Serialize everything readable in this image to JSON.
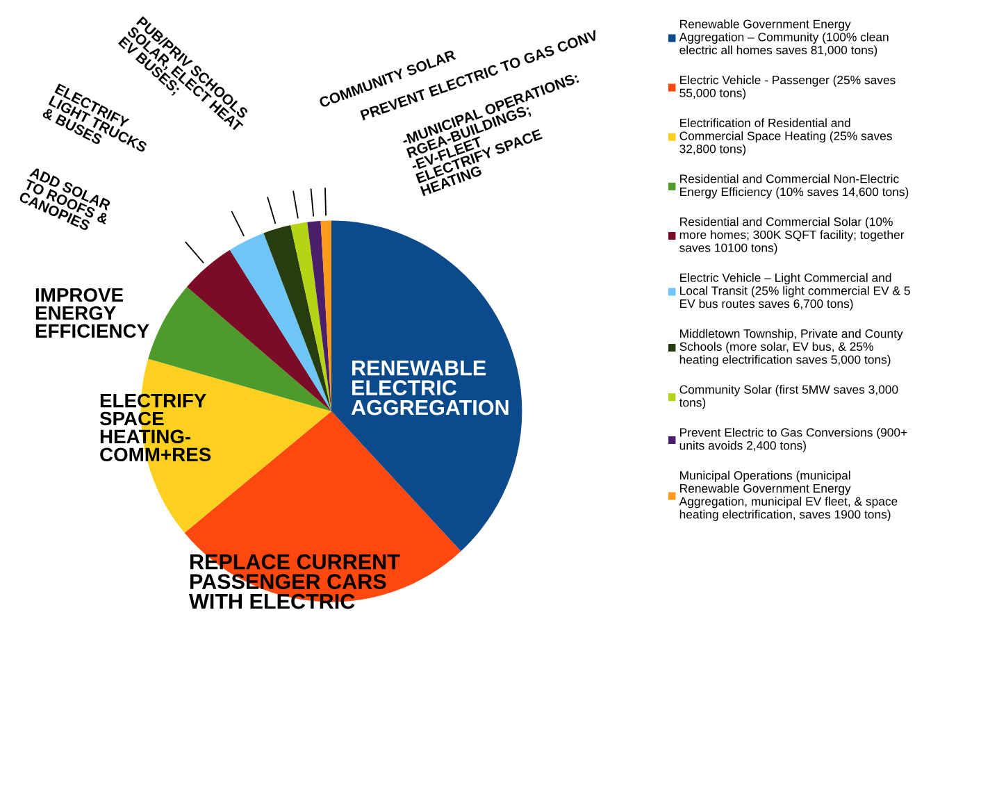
{
  "chart_data": {
    "type": "pie",
    "categories": [
      "Renewable Government Energy\nAggregation – Community (100% clean\nelectric all homes saves 81,000 tons)",
      "Electric Vehicle - Passenger (25% saves\n55,000 tons)",
      "Electrification of Residential and\nCommercial Space Heating (25% saves\n32,800 tons)",
      "Residential and Commercial Non-Electric\nEnergy Efficiency (10% saves 14,600 tons)",
      "Residential and Commercial Solar (10%\nmore homes; 300K SQFT facility; together\nsaves 10100 tons)",
      "Electric Vehicle – Light Commercial and\nLocal Transit (25% light commercial EV & 5\nEV bus routes saves 6,700 tons)",
      "Middletown Township, Private and County\nSchools (more solar, EV bus, & 25%\nheating electrification saves 5,000 tons)",
      "Community Solar (first 5MW saves 3,000\ntons)",
      "Prevent Electric to Gas Conversions (900+\nunits avoids 2,400 tons)",
      "Municipal Operations (municipal\nRenewable Government Energy\nAggregation, municipal EV fleet, & space\nheating electrification, saves 1900 tons)"
    ],
    "values": [
      81000,
      55000,
      32800,
      14600,
      10100,
      6700,
      5000,
      3000,
      2400,
      1900
    ],
    "colors": [
      "#0b4a8b",
      "#ff4810",
      "#fdd020",
      "#4e9a2a",
      "#7b0c27",
      "#6ec6f7",
      "#263d10",
      "#b5d414",
      "#4b1e6b",
      "#ff9a1a"
    ],
    "annotations": [
      "RENEWABLE\nELECTRIC\nAGGREGATION",
      "REPLACE CURRENT\nPASSENGER CARS\nWITH ELECTRIC",
      "ELECTRIFY\nSPACE\nHEATING-\nCOMM+RES",
      "IMPROVE\nENERGY\nEFFICIENCY",
      "ADD SOLAR\nTO ROOFS &\nCANOPIES",
      "ELECTRIFY\nLIGHT TRUCKS\n& BUSES",
      "PUB/PRIV SCHOOLS\nSOLAR, ELECT HEAT\nEV BUSES;",
      "COMMUNITY SOLAR",
      "PREVENT ELECTRIC TO GAS CONV",
      "-MUNICIPAL OPERATIONS:\nRGEA-BUILDINGS;\n-EV-FLEET\nELECTRIFY SPACE\nHEATING"
    ],
    "legend": "right"
  }
}
